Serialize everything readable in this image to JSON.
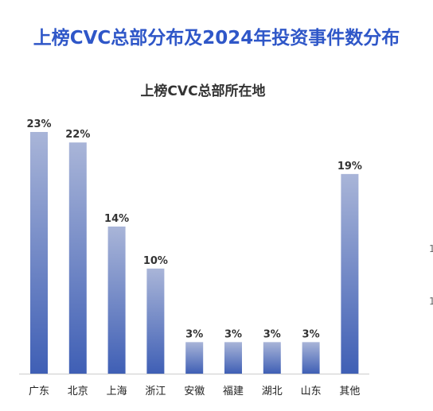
{
  "header": {
    "title": "上榜CVC总部分布及2024年投资事件数分布"
  },
  "chart_data": {
    "type": "bar",
    "title": "上榜CVC总部所在地",
    "categories": [
      "广东",
      "北京",
      "上海",
      "浙江",
      "安徽",
      "福建",
      "湖北",
      "山东",
      "其他"
    ],
    "values": [
      23,
      22,
      14,
      10,
      3,
      3,
      3,
      3,
      19
    ],
    "value_labels": [
      "23%",
      "22%",
      "14%",
      "10%",
      "3%",
      "3%",
      "3%",
      "3%",
      "19%"
    ],
    "unit": "%",
    "ylim": [
      0,
      23
    ],
    "grid": false,
    "colors": {
      "bar_top": "#a9b5d8",
      "bar_bottom": "#3f5fb5",
      "axis": "#cccccc"
    }
  }
}
